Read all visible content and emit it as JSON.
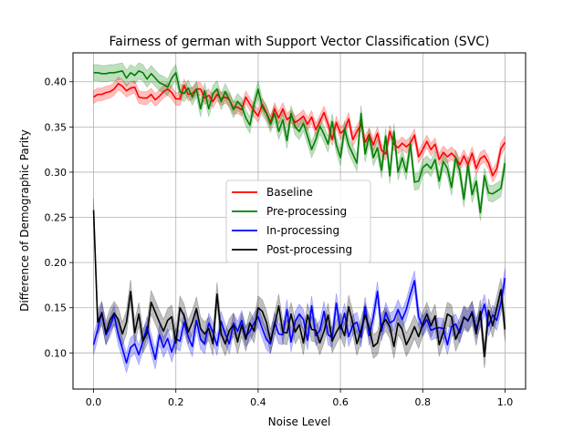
{
  "chart_data": {
    "type": "line",
    "title": "Fairness of german with Support Vector Classification (SVC)",
    "xlabel": "Noise Level",
    "ylabel": "Difference of Demographic Parity",
    "xlim": [
      -0.05,
      1.05
    ],
    "ylim": [
      0.06,
      0.432
    ],
    "xticks": [
      0.0,
      0.2,
      0.4,
      0.6,
      0.8,
      1.0
    ],
    "xtick_labels": [
      "0.0",
      "0.2",
      "0.4",
      "0.6",
      "0.8",
      "1.0"
    ],
    "yticks": [
      0.1,
      0.15,
      0.2,
      0.25,
      0.3,
      0.35,
      0.4
    ],
    "ytick_labels": [
      "0.10",
      "0.15",
      "0.20",
      "0.25",
      "0.30",
      "0.35",
      "0.40"
    ],
    "grid": true,
    "legend_placement": "center",
    "x_start": 0.0,
    "x_step": 0.01,
    "series": [
      {
        "name": "Baseline",
        "color": "#ff0000",
        "band": 0.007,
        "values": [
          0.383,
          0.386,
          0.386,
          0.388,
          0.389,
          0.392,
          0.398,
          0.395,
          0.39,
          0.393,
          0.394,
          0.383,
          0.382,
          0.382,
          0.386,
          0.38,
          0.384,
          0.389,
          0.392,
          0.388,
          0.381,
          0.381,
          0.396,
          0.386,
          0.387,
          0.392,
          0.392,
          0.382,
          0.385,
          0.378,
          0.386,
          0.381,
          0.383,
          0.38,
          0.371,
          0.372,
          0.369,
          0.383,
          0.375,
          0.368,
          0.362,
          0.375,
          0.366,
          0.355,
          0.37,
          0.36,
          0.37,
          0.358,
          0.362,
          0.355,
          0.358,
          0.362,
          0.353,
          0.361,
          0.347,
          0.356,
          0.366,
          0.353,
          0.336,
          0.355,
          0.343,
          0.347,
          0.359,
          0.336,
          0.345,
          0.353,
          0.333,
          0.342,
          0.33,
          0.343,
          0.324,
          0.32,
          0.345,
          0.331,
          0.327,
          0.332,
          0.328,
          0.332,
          0.341,
          0.317,
          0.325,
          0.334,
          0.325,
          0.331,
          0.314,
          0.322,
          0.317,
          0.321,
          0.316,
          0.308,
          0.318,
          0.308,
          0.321,
          0.304,
          0.315,
          0.318,
          0.31,
          0.296,
          0.304,
          0.326,
          0.333
        ]
      },
      {
        "name": "Pre-processing",
        "color": "#008000",
        "band": 0.009,
        "values": [
          0.41,
          0.41,
          0.409,
          0.409,
          0.41,
          0.41,
          0.411,
          0.412,
          0.404,
          0.41,
          0.407,
          0.412,
          0.41,
          0.403,
          0.409,
          0.404,
          0.399,
          0.397,
          0.394,
          0.404,
          0.41,
          0.389,
          0.387,
          0.393,
          0.383,
          0.392,
          0.37,
          0.39,
          0.37,
          0.387,
          0.392,
          0.378,
          0.389,
          0.38,
          0.369,
          0.378,
          0.373,
          0.36,
          0.352,
          0.375,
          0.392,
          0.372,
          0.365,
          0.353,
          0.365,
          0.345,
          0.358,
          0.335,
          0.365,
          0.35,
          0.345,
          0.354,
          0.34,
          0.325,
          0.336,
          0.351,
          0.342,
          0.331,
          0.356,
          0.33,
          0.316,
          0.348,
          0.33,
          0.32,
          0.31,
          0.365,
          0.32,
          0.34,
          0.316,
          0.327,
          0.302,
          0.34,
          0.296,
          0.345,
          0.3,
          0.316,
          0.3,
          0.331,
          0.289,
          0.29,
          0.305,
          0.309,
          0.304,
          0.314,
          0.29,
          0.312,
          0.304,
          0.283,
          0.316,
          0.301,
          0.27,
          0.308,
          0.275,
          0.29,
          0.255,
          0.296,
          0.277,
          0.276,
          0.279,
          0.282,
          0.31
        ]
      },
      {
        "name": "In-processing",
        "color": "#0000ff",
        "band": 0.011,
        "values": [
          0.109,
          0.126,
          0.145,
          0.12,
          0.129,
          0.142,
          0.12,
          0.105,
          0.089,
          0.106,
          0.11,
          0.098,
          0.113,
          0.129,
          0.11,
          0.093,
          0.12,
          0.106,
          0.116,
          0.101,
          0.116,
          0.113,
          0.134,
          0.118,
          0.107,
          0.136,
          0.115,
          0.11,
          0.133,
          0.123,
          0.108,
          0.135,
          0.121,
          0.11,
          0.133,
          0.124,
          0.136,
          0.118,
          0.124,
          0.133,
          0.14,
          0.127,
          0.115,
          0.11,
          0.134,
          0.121,
          0.12,
          0.148,
          0.112,
          0.135,
          0.143,
          0.137,
          0.114,
          0.152,
          0.119,
          0.125,
          0.146,
          0.12,
          0.117,
          0.155,
          0.126,
          0.144,
          0.118,
          0.131,
          0.134,
          0.117,
          0.151,
          0.119,
          0.14,
          0.168,
          0.124,
          0.145,
          0.133,
          0.136,
          0.148,
          0.137,
          0.148,
          0.165,
          0.18,
          0.14,
          0.129,
          0.137,
          0.125,
          0.127,
          0.128,
          0.127,
          0.109,
          0.129,
          0.132,
          0.122,
          0.14,
          0.135,
          0.146,
          0.127,
          0.139,
          0.154,
          0.13,
          0.142,
          0.136,
          0.155,
          0.183
        ]
      },
      {
        "name": "Post-processing",
        "color": "#000000",
        "band": 0.013,
        "values": [
          0.258,
          0.134,
          0.144,
          0.122,
          0.136,
          0.144,
          0.137,
          0.121,
          0.134,
          0.168,
          0.122,
          0.143,
          0.113,
          0.122,
          0.156,
          0.145,
          0.134,
          0.124,
          0.136,
          0.14,
          0.111,
          0.15,
          0.141,
          0.123,
          0.134,
          0.149,
          0.127,
          0.121,
          0.127,
          0.11,
          0.165,
          0.121,
          0.11,
          0.125,
          0.131,
          0.112,
          0.131,
          0.115,
          0.133,
          0.124,
          0.15,
          0.146,
          0.134,
          0.113,
          0.131,
          0.152,
          0.123,
          0.122,
          0.143,
          0.123,
          0.131,
          0.111,
          0.142,
          0.126,
          0.125,
          0.111,
          0.124,
          0.142,
          0.113,
          0.123,
          0.131,
          0.119,
          0.151,
          0.133,
          0.11,
          0.125,
          0.142,
          0.128,
          0.107,
          0.111,
          0.131,
          0.137,
          0.129,
          0.107,
          0.133,
          0.126,
          0.109,
          0.118,
          0.129,
          0.118,
          0.132,
          0.143,
          0.13,
          0.141,
          0.109,
          0.123,
          0.143,
          0.14,
          0.115,
          0.126,
          0.139,
          0.136,
          0.144,
          0.121,
          0.146,
          0.096,
          0.147,
          0.13,
          0.15,
          0.17,
          0.126
        ]
      }
    ]
  }
}
